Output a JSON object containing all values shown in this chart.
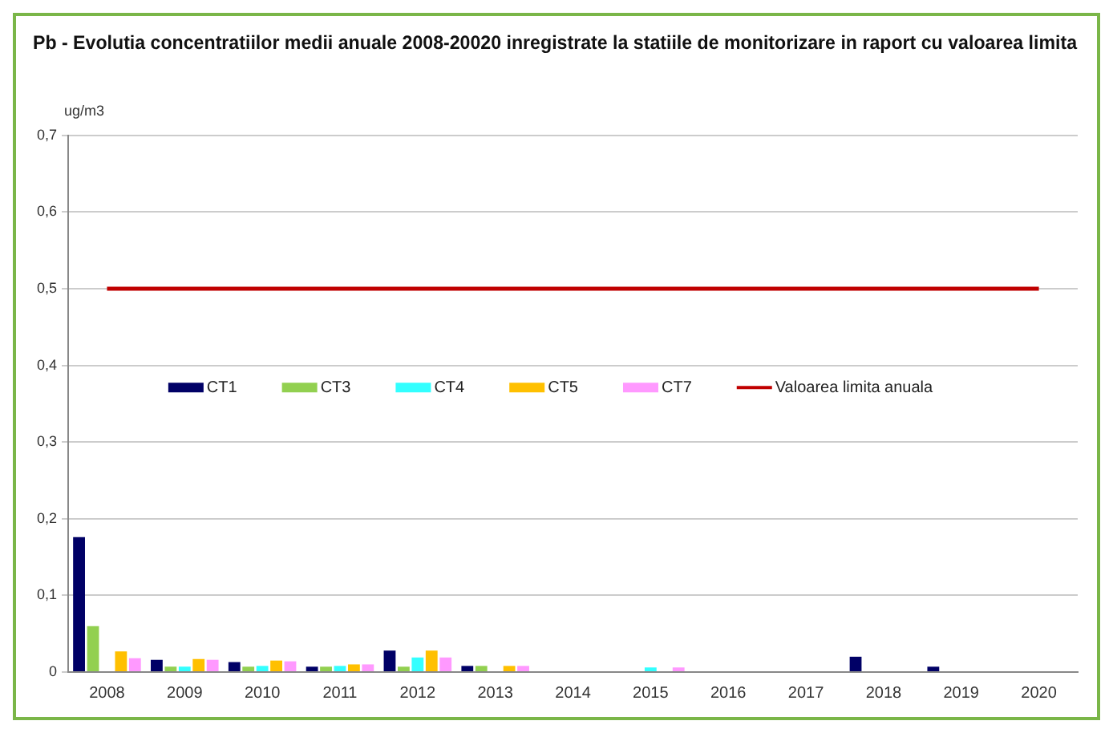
{
  "chart_data": {
    "type": "bar",
    "title": "Pb - Evolutia concentratiilor medii anuale 2008-20020 inregistrate la statiile de monitorizare in raport cu valoarea limita",
    "ylabel": "ug/m3",
    "categories": [
      "2008",
      "2009",
      "2010",
      "2011",
      "2012",
      "2013",
      "2014",
      "2015",
      "2016",
      "2017",
      "2018",
      "2019",
      "2020"
    ],
    "series": [
      {
        "name": "CT1",
        "color": "#000066",
        "values": [
          0.176,
          0.016,
          0.013,
          0.007,
          0.028,
          0.008,
          null,
          null,
          null,
          null,
          0.02,
          0.007,
          null
        ]
      },
      {
        "name": "CT3",
        "color": "#92d050",
        "values": [
          0.06,
          0.007,
          0.007,
          0.007,
          0.007,
          0.008,
          null,
          null,
          null,
          null,
          null,
          null,
          null
        ]
      },
      {
        "name": "CT4",
        "color": "#33ffff",
        "values": [
          null,
          0.007,
          0.008,
          0.008,
          0.019,
          null,
          null,
          0.006,
          null,
          null,
          null,
          null,
          null
        ]
      },
      {
        "name": "CT5",
        "color": "#ffc000",
        "values": [
          0.027,
          0.017,
          0.015,
          0.01,
          0.028,
          0.008,
          null,
          null,
          null,
          null,
          null,
          null,
          null
        ]
      },
      {
        "name": "CT7",
        "color": "#ff99ff",
        "values": [
          0.018,
          0.016,
          0.014,
          0.01,
          0.019,
          0.008,
          null,
          0.006,
          null,
          null,
          null,
          null,
          null
        ]
      },
      {
        "name": "Valoarea limita anuala",
        "type": "line",
        "color": "#c00000",
        "values": [
          0.5,
          0.5,
          0.5,
          0.5,
          0.5,
          0.5,
          0.5,
          0.5,
          0.5,
          0.5,
          0.5,
          0.5,
          0.5
        ]
      }
    ],
    "ylim": [
      0,
      0.7
    ],
    "yticks": [
      0,
      {
        "value": 0.1,
        "label": "0,1"
      },
      {
        "value": 0.2,
        "label": "0,2"
      },
      {
        "value": 0.3,
        "label": "0,3"
      },
      {
        "value": 0.4,
        "label": "0,4"
      },
      {
        "value": 0.5,
        "label": "0,5"
      },
      {
        "value": 0.6,
        "label": "0,6"
      },
      {
        "value": 0.7,
        "label": "0,7"
      }
    ],
    "grid": "y",
    "legend": "center",
    "marker": "none"
  }
}
